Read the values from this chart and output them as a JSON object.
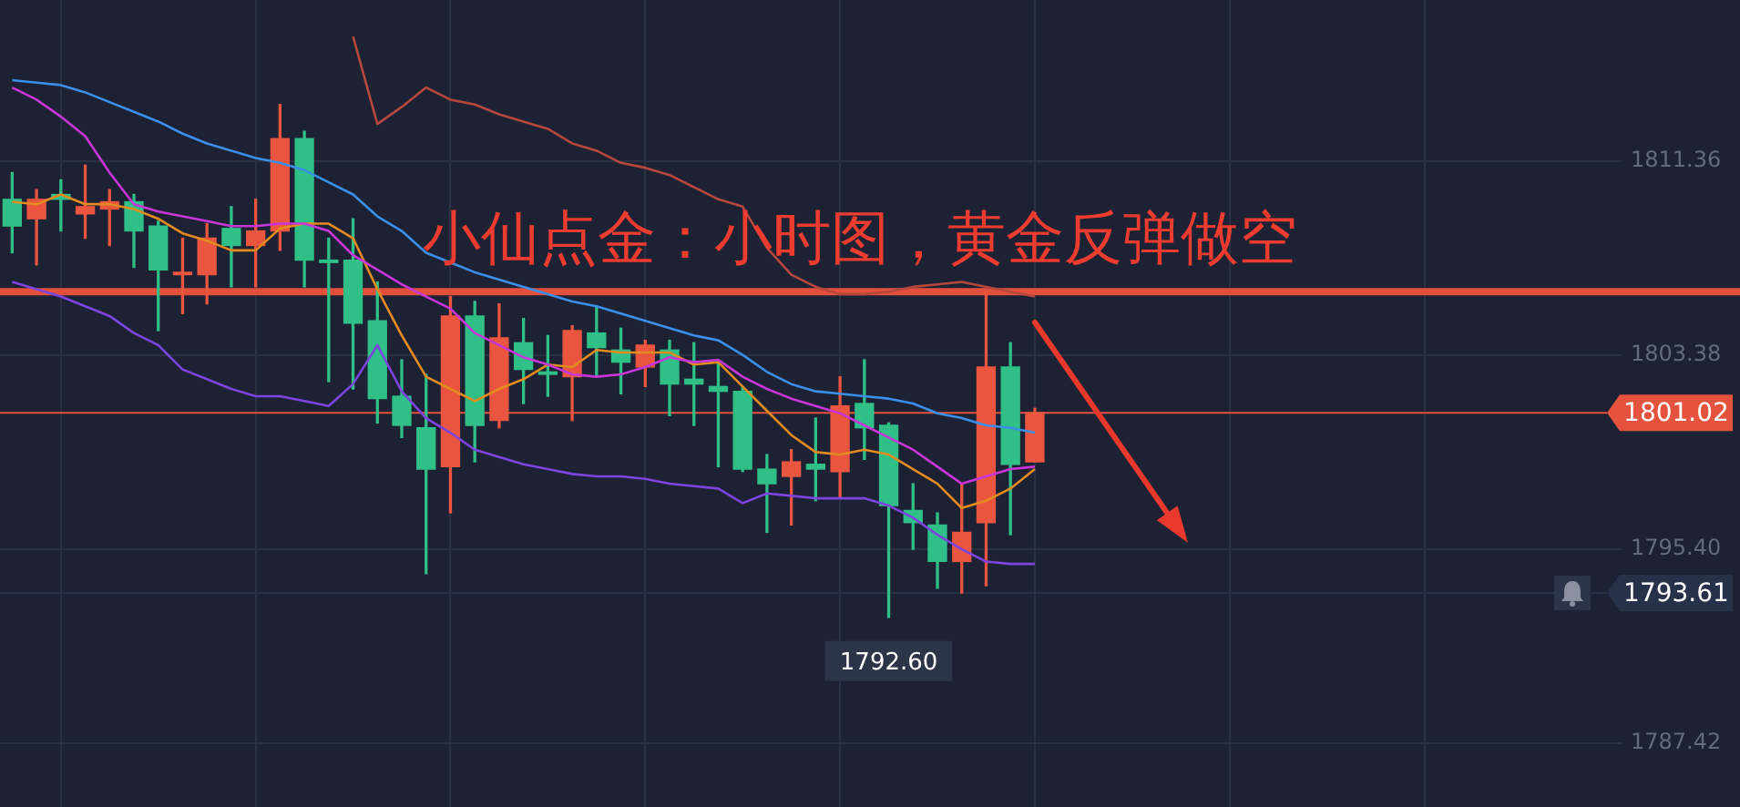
{
  "chart_data": {
    "type": "candlestick",
    "title": "小仙点金：小时图，黄金反弹做空",
    "categories": [
      null,
      null,
      null,
      null,
      null,
      null,
      null,
      null,
      null,
      null,
      null,
      null,
      null,
      null,
      null,
      null,
      null,
      null,
      null,
      null,
      null,
      null,
      null,
      null,
      null,
      null,
      null,
      null,
      null,
      null,
      null,
      null,
      null,
      null,
      null,
      null,
      null,
      null,
      null,
      null,
      null,
      null,
      null,
      null,
      null,
      null,
      null,
      null,
      null,
      null,
      null,
      null,
      null,
      null,
      null,
      null,
      null,
      null,
      null,
      null,
      null,
      null,
      null,
      null,
      null,
      null
    ],
    "ohlc": [
      [
        1809.8,
        1810.9,
        1807.6,
        1808.7
      ],
      [
        1809.0,
        1810.2,
        1807.1,
        1809.8
      ],
      [
        1810.0,
        1810.6,
        1808.5,
        1809.8
      ],
      [
        1809.2,
        1811.2,
        1808.2,
        1809.5
      ],
      [
        1809.4,
        1810.2,
        1807.9,
        1809.7
      ],
      [
        1809.7,
        1810.0,
        1807.0,
        1808.5
      ],
      [
        1808.7,
        1808.9,
        1804.4,
        1806.9
      ],
      [
        1806.7,
        1808.2,
        1805.1,
        1806.8
      ],
      [
        1806.7,
        1808.8,
        1805.5,
        1808.2
      ],
      [
        1808.6,
        1809.5,
        1806.2,
        1807.9
      ],
      [
        1807.9,
        1809.8,
        1806.2,
        1808.5
      ],
      [
        1808.5,
        1813.7,
        1807.7,
        1812.3
      ],
      [
        1812.3,
        1812.6,
        1806.2,
        1807.3
      ],
      [
        1807.3,
        1808.2,
        1802.3,
        1807.2
      ],
      [
        1807.3,
        1809.0,
        1802.0,
        1804.7
      ],
      [
        1804.8,
        1806.4,
        1800.6,
        1801.6
      ],
      [
        1801.7,
        1803.2,
        1800.0,
        1800.5
      ],
      [
        1800.4,
        1802.6,
        1794.4,
        1798.7
      ],
      [
        1798.8,
        1805.8,
        1796.9,
        1805.0
      ],
      [
        1805.0,
        1805.6,
        1799.0,
        1800.5
      ],
      [
        1800.7,
        1805.5,
        1800.4,
        1804.1
      ],
      [
        1803.9,
        1804.9,
        1801.4,
        1802.8
      ],
      [
        1802.7,
        1804.2,
        1801.7,
        1802.6
      ],
      [
        1802.5,
        1804.6,
        1800.7,
        1804.4
      ],
      [
        1804.3,
        1805.4,
        1802.5,
        1803.7
      ],
      [
        1803.6,
        1804.5,
        1801.8,
        1803.1
      ],
      [
        1802.9,
        1804.0,
        1802.1,
        1803.8
      ],
      [
        1803.6,
        1804.0,
        1800.9,
        1802.2
      ],
      [
        1802.4,
        1803.9,
        1800.5,
        1802.2
      ],
      [
        1802.1,
        1803.1,
        1798.8,
        1801.9
      ],
      [
        1801.9,
        1802.1,
        1798.6,
        1798.7
      ],
      [
        1798.7,
        1799.3,
        1796.1,
        1798.1
      ],
      [
        1798.4,
        1799.5,
        1796.4,
        1799.0
      ],
      [
        1798.9,
        1800.8,
        1797.4,
        1798.7
      ],
      [
        1798.6,
        1802.5,
        1797.5,
        1801.3
      ],
      [
        1801.4,
        1803.2,
        1799.1,
        1800.4
      ],
      [
        1800.5,
        1800.6,
        1792.6,
        1797.2
      ],
      [
        1797.0,
        1798.1,
        1795.4,
        1796.5
      ],
      [
        1796.4,
        1796.9,
        1793.8,
        1794.9
      ],
      [
        1794.9,
        1798.1,
        1793.6,
        1796.1
      ],
      [
        1796.5,
        1806.0,
        1793.9,
        1802.9
      ],
      [
        1802.9,
        1803.9,
        1796.0,
        1798.9
      ],
      [
        1799.0,
        1801.2,
        1799.0,
        1801.02
      ],
      null,
      null,
      null,
      null,
      null,
      null,
      null,
      null,
      null,
      null,
      null,
      null,
      null,
      null,
      null,
      null,
      null,
      null,
      null,
      null,
      null,
      null,
      null
    ],
    "colors": [
      "#2fbf87",
      "#ea5540",
      "#2fbf87",
      "#ea5540",
      "#ea5540",
      "#2fbf87",
      "#2fbf87",
      "#ea5540",
      "#ea5540",
      "#2fbf87",
      "#ea5540",
      "#ea5540",
      "#2fbf87",
      "#2fbf87",
      "#2fbf87",
      "#2fbf87",
      "#2fbf87",
      "#2fbf87",
      "#ea5540",
      "#2fbf87",
      "#ea5540",
      "#2fbf87",
      "#2fbf87",
      "#ea5540",
      "#2fbf87",
      "#2fbf87",
      "#ea5540",
      "#2fbf87",
      "#2fbf87",
      "#2fbf87",
      "#2fbf87",
      "#2fbf87",
      "#ea5540",
      "#2fbf87",
      "#ea5540",
      "#2fbf87",
      "#2fbf87",
      "#2fbf87",
      "#2fbf87",
      "#ea5540",
      "#ea5540",
      "#2fbf87",
      "#ea5540",
      null,
      null,
      null,
      null,
      null,
      null,
      null,
      null,
      null,
      null,
      null,
      null,
      null,
      null,
      null,
      null,
      null,
      null,
      null,
      null,
      null,
      null,
      null
    ],
    "series": [
      {
        "type": "line",
        "color": "#3b8fe8",
        "values": [
          1814.7,
          1814.6,
          1814.5,
          1814.2,
          1813.8,
          1813.4,
          1813.0,
          1812.5,
          1812.1,
          1811.8,
          1811.5,
          1811.3,
          1811.0,
          1810.5,
          1810.0,
          1809.1,
          1808.5,
          1807.6,
          1807.2,
          1806.8,
          1806.5,
          1806.2,
          1805.9,
          1805.6,
          1805.4,
          1805.1,
          1804.8,
          1804.5,
          1804.2,
          1804.0,
          1803.4,
          1802.7,
          1802.2,
          1801.9,
          1801.8,
          1801.7,
          1801.6,
          1801.4,
          1801.0,
          1800.8,
          1800.5,
          1800.4,
          1800.2,
          null,
          null,
          null,
          null,
          null,
          null,
          null,
          null,
          null,
          null,
          null,
          null,
          null,
          null,
          null,
          null,
          null,
          null,
          null,
          null,
          null,
          null,
          null
        ]
      },
      {
        "type": "line",
        "color": "#c936d8",
        "values": [
          1814.4,
          1813.9,
          1813.2,
          1812.4,
          1810.9,
          1809.6,
          1809.3,
          1809.1,
          1808.9,
          1808.7,
          1808.7,
          1808.8,
          1808.8,
          1808.5,
          1807.5,
          1806.9,
          1806.3,
          1805.8,
          1805.3,
          1804.3,
          1803.8,
          1803.3,
          1803.0,
          1802.6,
          1802.5,
          1802.6,
          1802.9,
          1803.3,
          1803.1,
          1803.2,
          1802.5,
          1802.0,
          1801.6,
          1801.3,
          1801.0,
          1800.5,
          1800.0,
          1799.5,
          1798.8,
          1798.1,
          1798.4,
          1798.7,
          1798.8,
          null,
          null,
          null,
          null,
          null,
          null,
          null,
          null,
          null,
          null,
          null,
          null,
          null,
          null,
          null,
          null,
          null,
          null,
          null,
          null,
          null,
          null,
          null
        ]
      },
      {
        "type": "line",
        "color": "#7d44e0",
        "values": [
          1806.4,
          1806.1,
          1805.8,
          1805.4,
          1805.0,
          1804.3,
          1803.8,
          1802.8,
          1802.4,
          1802.0,
          1801.7,
          1801.7,
          1801.5,
          1801.3,
          1802.2,
          1803.8,
          1801.9,
          1800.8,
          1800.2,
          1799.5,
          1799.2,
          1798.9,
          1798.7,
          1798.5,
          1798.4,
          1798.4,
          1798.3,
          1798.1,
          1798.0,
          1797.9,
          1797.3,
          1797.7,
          1797.6,
          1797.5,
          1797.5,
          1797.5,
          1797.2,
          1796.7,
          1796.0,
          1795.4,
          1794.9,
          1794.8,
          1794.8,
          null,
          null,
          null,
          null,
          null,
          null,
          null,
          null,
          null,
          null,
          null,
          null,
          null,
          null,
          null,
          null,
          null,
          null,
          null,
          null,
          null,
          null,
          null
        ]
      },
      {
        "type": "line",
        "color": "#e38b1f",
        "values": [
          1809.7,
          1809.6,
          1810.0,
          1809.6,
          1809.6,
          1809.4,
          1809.0,
          1808.4,
          1808.1,
          1807.7,
          1807.7,
          1808.6,
          1808.8,
          1808.8,
          1808.2,
          1806.1,
          1804.2,
          1802.5,
          1802.0,
          1801.5,
          1802.0,
          1802.4,
          1803.0,
          1802.9,
          1803.6,
          1803.5,
          1803.5,
          1803.5,
          1803.0,
          1803.1,
          1802.1,
          1801.1,
          1800.1,
          1799.4,
          1799.3,
          1799.5,
          1799.3,
          1798.7,
          1798.1,
          1797.1,
          1797.4,
          1797.9,
          1798.7,
          null,
          null,
          null,
          null,
          null,
          null,
          null,
          null,
          null,
          null,
          null,
          null,
          null,
          null,
          null,
          null,
          null,
          null,
          null,
          null,
          null,
          null,
          null
        ]
      },
      {
        "type": "line",
        "color": "#b5473c",
        "values": [
          null,
          null,
          null,
          null,
          null,
          null,
          null,
          null,
          null,
          null,
          null,
          null,
          null,
          null,
          1816.5,
          1812.9,
          1813.6,
          1814.4,
          1813.9,
          1813.7,
          1813.3,
          1813.0,
          1812.7,
          1812.1,
          1811.8,
          1811.3,
          1811.1,
          1810.8,
          1810.3,
          1809.8,
          1809.5,
          1807.8,
          1806.7,
          1806.2,
          1805.9,
          1805.9,
          1806.0,
          1806.2,
          1806.3,
          1806.4,
          1806.2,
          1806.0,
          1805.8,
          null,
          null,
          null,
          null,
          null,
          null,
          null,
          null,
          null,
          null,
          null,
          null,
          null,
          null,
          null,
          null,
          null,
          null,
          null,
          null,
          null,
          null,
          null
        ]
      }
    ],
    "ylim": [
      1784.8,
      1818.0
    ],
    "yticks": [
      1787.42,
      {
        "value": 1795.4,
        "label": "1795.40"
      },
      1803.38,
      1811.36
    ],
    "tick_labels": "y",
    "grid": true,
    "ref_lines": [
      {
        "axis": "y",
        "value": 1806.0,
        "color": "#e2503c"
      },
      {
        "axis": "y",
        "value": 1801.02,
        "label": "1801.02",
        "color": "#e5533f"
      },
      {
        "axis": "y",
        "value": 1793.61,
        "label": "1793.61",
        "color": "#27314a"
      }
    ],
    "annotations": [
      {
        "text": "1792.60",
        "y": 1792.6
      }
    ]
  }
}
